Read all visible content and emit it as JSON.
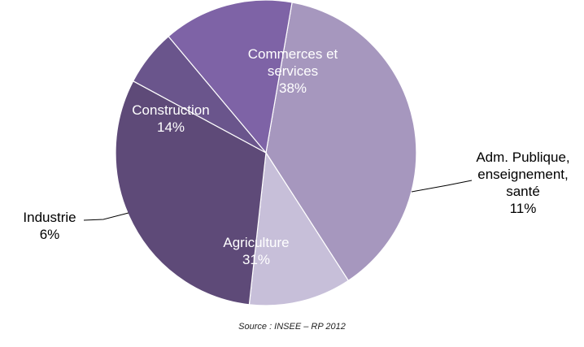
{
  "chart_data": {
    "type": "pie",
    "title": "",
    "slices": [
      {
        "label_lines": [
          "Commerces et",
          "services"
        ],
        "value_label": "38%",
        "value": 38,
        "color": "#A697BE",
        "label_inside": true,
        "text_color": "#ffffff"
      },
      {
        "label_lines": [
          "Adm. Publique,",
          "enseignement,",
          "santé"
        ],
        "value_label": "11%",
        "value": 11,
        "color": "#C7BFD9",
        "label_inside": false,
        "text_color": "#000000"
      },
      {
        "label_lines": [
          "Agriculture"
        ],
        "value_label": "31%",
        "value": 31,
        "color": "#5E4A78",
        "label_inside": true,
        "text_color": "#ffffff"
      },
      {
        "label_lines": [
          "Industrie"
        ],
        "value_label": "6%",
        "value": 6,
        "color": "#6A558C",
        "label_inside": false,
        "text_color": "#000000"
      },
      {
        "label_lines": [
          "Construction"
        ],
        "value_label": "14%",
        "value": 14,
        "color": "#7E63A6",
        "label_inside": true,
        "text_color": "#ffffff"
      }
    ]
  },
  "footer": {
    "source": "Source : INSEE – RP 2012"
  }
}
